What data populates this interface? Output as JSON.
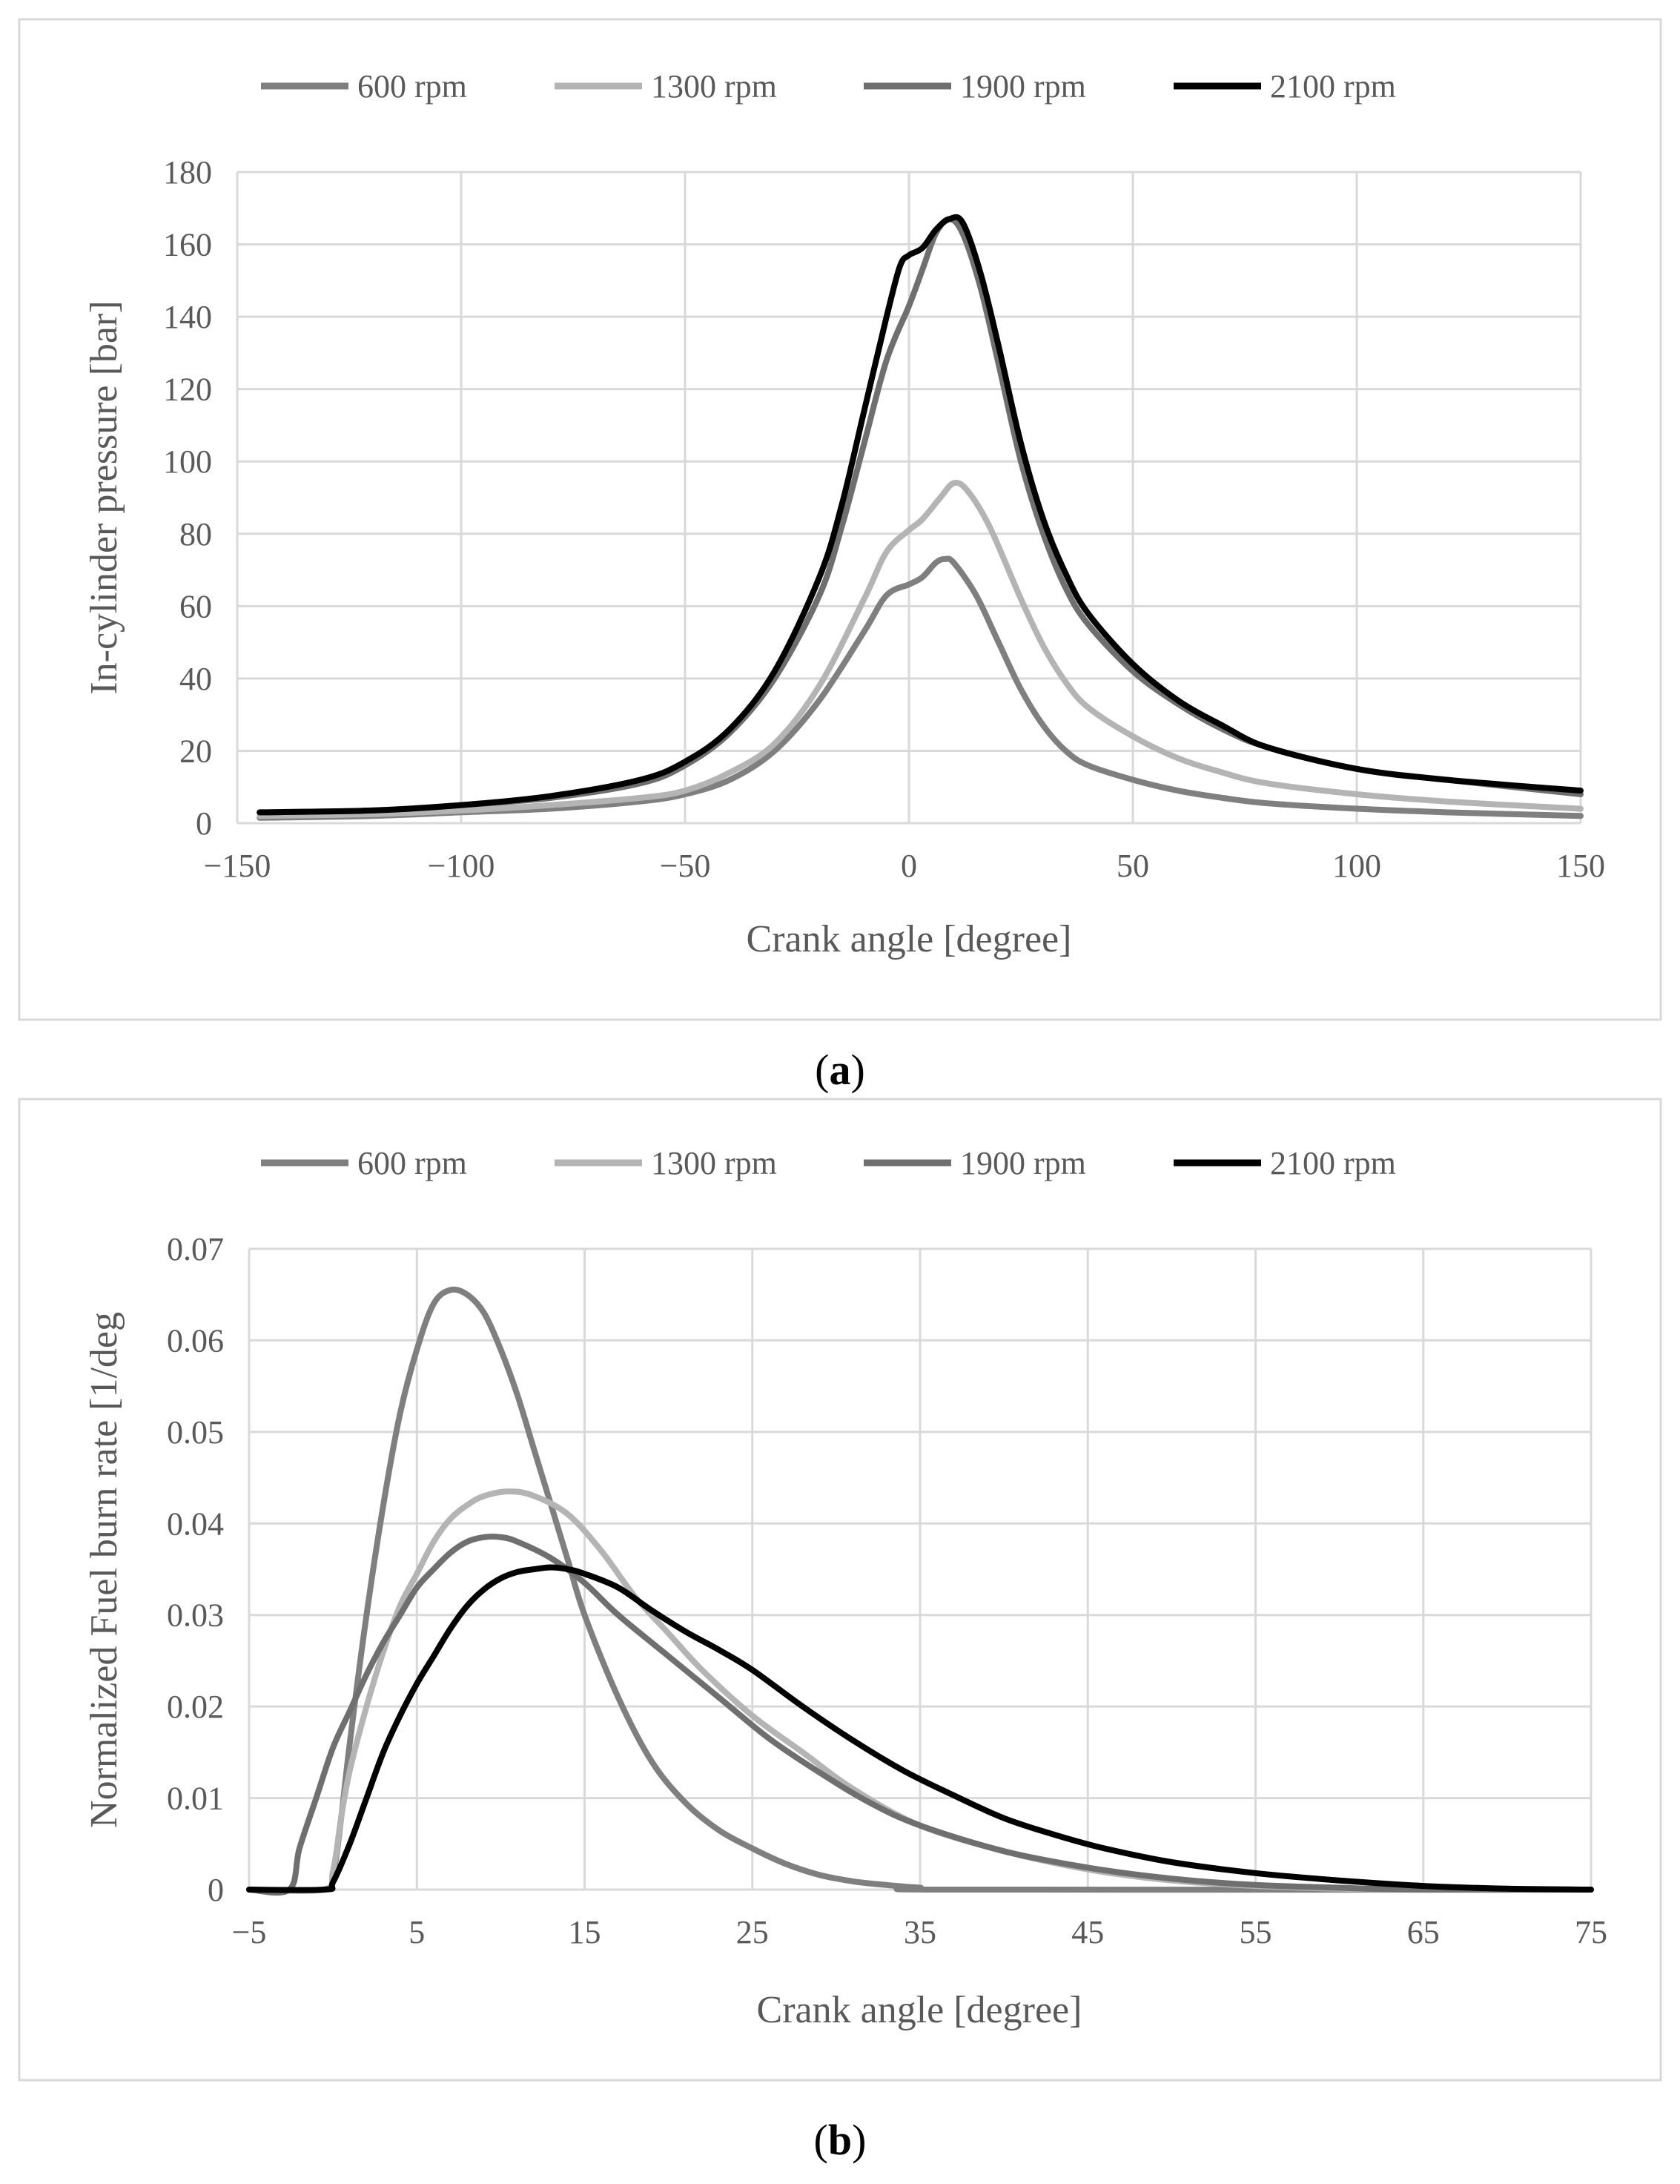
{
  "colors": {
    "s600": "#7f7f7f",
    "s1300": "#b4b4b4",
    "s1900": "#6f6f6f",
    "s2100": "#000000"
  },
  "captions": {
    "a": "a",
    "b": "b"
  },
  "chart_data": [
    {
      "type": "line",
      "title": "",
      "xlabel": "Crank angle [degree]",
      "ylabel": "In-cylinder pressure [bar]",
      "xlim": [
        -150,
        150
      ],
      "ylim": [
        0,
        180
      ],
      "xticks": [
        -150,
        -100,
        -50,
        0,
        50,
        100,
        150
      ],
      "xtick_labels": [
        "−150",
        "−100",
        "−50",
        "0",
        "50",
        "100",
        "150"
      ],
      "yticks": [
        0,
        20,
        40,
        60,
        80,
        100,
        120,
        140,
        160,
        180
      ],
      "ytick_labels": [
        "0",
        "20",
        "40",
        "60",
        "80",
        "100",
        "120",
        "140",
        "160",
        "180"
      ],
      "legend": "top",
      "series": [
        {
          "name": "600 rpm",
          "color_key": "s600",
          "points": [
            [
              -145,
              1.5
            ],
            [
              -120,
              2
            ],
            [
              -100,
              3
            ],
            [
              -80,
              4
            ],
            [
              -60,
              6
            ],
            [
              -50,
              8
            ],
            [
              -40,
              12
            ],
            [
              -30,
              20
            ],
            [
              -20,
              34
            ],
            [
              -10,
              53
            ],
            [
              -5,
              63
            ],
            [
              0,
              66
            ],
            [
              3,
              68
            ],
            [
              6,
              72
            ],
            [
              8,
              73
            ],
            [
              10,
              72
            ],
            [
              15,
              63
            ],
            [
              20,
              50
            ],
            [
              25,
              37
            ],
            [
              30,
              27
            ],
            [
              35,
              20
            ],
            [
              40,
              16
            ],
            [
              50,
              12
            ],
            [
              60,
              9
            ],
            [
              70,
              7
            ],
            [
              80,
              5.5
            ],
            [
              100,
              4
            ],
            [
              120,
              3
            ],
            [
              150,
              2
            ]
          ]
        },
        {
          "name": "1300 rpm",
          "color_key": "s1300",
          "points": [
            [
              -145,
              2
            ],
            [
              -120,
              2.5
            ],
            [
              -100,
              3.5
            ],
            [
              -80,
              5
            ],
            [
              -60,
              7
            ],
            [
              -50,
              9
            ],
            [
              -40,
              14
            ],
            [
              -30,
              22
            ],
            [
              -20,
              38
            ],
            [
              -10,
              62
            ],
            [
              -5,
              75
            ],
            [
              0,
              81
            ],
            [
              3,
              84
            ],
            [
              7,
              90
            ],
            [
              10,
              94
            ],
            [
              13,
              92
            ],
            [
              18,
              82
            ],
            [
              25,
              62
            ],
            [
              30,
              49
            ],
            [
              35,
              39
            ],
            [
              40,
              32
            ],
            [
              50,
              24
            ],
            [
              60,
              18
            ],
            [
              70,
              14
            ],
            [
              80,
              11
            ],
            [
              100,
              8
            ],
            [
              120,
              6
            ],
            [
              150,
              4
            ]
          ]
        },
        {
          "name": "1900 rpm",
          "color_key": "s1900",
          "points": [
            [
              -145,
              3
            ],
            [
              -120,
              3.5
            ],
            [
              -100,
              5
            ],
            [
              -80,
              7
            ],
            [
              -60,
              11
            ],
            [
              -50,
              16
            ],
            [
              -40,
              25
            ],
            [
              -30,
              40
            ],
            [
              -20,
              63
            ],
            [
              -15,
              82
            ],
            [
              -10,
              105
            ],
            [
              -5,
              128
            ],
            [
              0,
              143
            ],
            [
              3,
              153
            ],
            [
              6,
              163
            ],
            [
              9,
              167
            ],
            [
              12,
              163
            ],
            [
              16,
              148
            ],
            [
              20,
              127
            ],
            [
              25,
              100
            ],
            [
              30,
              80
            ],
            [
              35,
              65
            ],
            [
              40,
              55
            ],
            [
              50,
              42
            ],
            [
              60,
              33
            ],
            [
              70,
              26
            ],
            [
              80,
              21
            ],
            [
              100,
              15
            ],
            [
              120,
              12
            ],
            [
              150,
              8
            ]
          ]
        },
        {
          "name": "2100 rpm",
          "color_key": "s2100",
          "points": [
            [
              -145,
              3
            ],
            [
              -120,
              3.5
            ],
            [
              -100,
              5
            ],
            [
              -80,
              7.5
            ],
            [
              -60,
              12
            ],
            [
              -50,
              17
            ],
            [
              -40,
              26
            ],
            [
              -30,
              42
            ],
            [
              -20,
              68
            ],
            [
              -15,
              88
            ],
            [
              -10,
              114
            ],
            [
              -5,
              140
            ],
            [
              -2,
              154
            ],
            [
              0,
              157
            ],
            [
              3,
              159
            ],
            [
              6,
              164
            ],
            [
              9,
              167
            ],
            [
              12,
              166
            ],
            [
              16,
              152
            ],
            [
              20,
              132
            ],
            [
              25,
              105
            ],
            [
              30,
              84
            ],
            [
              35,
              69
            ],
            [
              40,
              58
            ],
            [
              50,
              44
            ],
            [
              60,
              34
            ],
            [
              70,
              27
            ],
            [
              80,
              21
            ],
            [
              100,
              15
            ],
            [
              120,
              12
            ],
            [
              150,
              9
            ]
          ]
        }
      ]
    },
    {
      "type": "line",
      "title": "",
      "xlabel": "Crank angle [degree]",
      "ylabel": "Normalized Fuel burn rate [1/deg",
      "xlim": [
        -5,
        75
      ],
      "ylim": [
        0,
        0.07
      ],
      "xticks": [
        -5,
        5,
        15,
        25,
        35,
        45,
        55,
        65,
        75
      ],
      "xtick_labels": [
        "−5",
        "5",
        "15",
        "25",
        "35",
        "45",
        "55",
        "65",
        "75"
      ],
      "yticks": [
        0,
        0.01,
        0.02,
        0.03,
        0.04,
        0.05,
        0.06,
        0.07
      ],
      "ytick_labels": [
        "0",
        "0.01",
        "0.02",
        "0.03",
        "0.04",
        "0.05",
        "0.06",
        "0.07"
      ],
      "legend": "top",
      "series": [
        {
          "name": "600 rpm",
          "color_key": "s600",
          "points": [
            [
              -5,
              0
            ],
            [
              -0.6,
              0
            ],
            [
              0,
              0.0015
            ],
            [
              0.5,
              0.008
            ],
            [
              1,
              0.016
            ],
            [
              2,
              0.03
            ],
            [
              3,
              0.042
            ],
            [
              4,
              0.052
            ],
            [
              5,
              0.059
            ],
            [
              6,
              0.064
            ],
            [
              7,
              0.0655
            ],
            [
              8,
              0.065
            ],
            [
              9,
              0.063
            ],
            [
              10,
              0.059
            ],
            [
              11,
              0.054
            ],
            [
              12,
              0.048
            ],
            [
              13,
              0.042
            ],
            [
              14,
              0.036
            ],
            [
              15,
              0.03
            ],
            [
              17,
              0.021
            ],
            [
              19,
              0.014
            ],
            [
              21,
              0.0095
            ],
            [
              23,
              0.0065
            ],
            [
              25,
              0.0045
            ],
            [
              27,
              0.0028
            ],
            [
              29,
              0.0016
            ],
            [
              31,
              0.0009
            ],
            [
              33,
              0.0005
            ],
            [
              35,
              0.0002
            ],
            [
              37,
              0
            ],
            [
              75,
              0
            ]
          ]
        },
        {
          "name": "1300 rpm",
          "color_key": "s1300",
          "points": [
            [
              -5,
              0
            ],
            [
              -0.6,
              0
            ],
            [
              0,
              0.002
            ],
            [
              0.5,
              0.008
            ],
            [
              1,
              0.013
            ],
            [
              2,
              0.02
            ],
            [
              3,
              0.026
            ],
            [
              4,
              0.031
            ],
            [
              5,
              0.0345
            ],
            [
              6,
              0.038
            ],
            [
              7,
              0.0405
            ],
            [
              8,
              0.042
            ],
            [
              9,
              0.043
            ],
            [
              10.5,
              0.0435
            ],
            [
              12,
              0.043
            ],
            [
              14,
              0.041
            ],
            [
              16,
              0.037
            ],
            [
              18,
              0.032
            ],
            [
              20,
              0.028
            ],
            [
              22,
              0.024
            ],
            [
              25,
              0.019
            ],
            [
              28,
              0.015
            ],
            [
              31,
              0.011
            ],
            [
              35,
              0.007
            ],
            [
              40,
              0.0042
            ],
            [
              45,
              0.0022
            ],
            [
              50,
              0.001
            ],
            [
              55,
              0.0004
            ],
            [
              60,
              0.0001
            ],
            [
              65,
              0
            ],
            [
              75,
              0
            ]
          ]
        },
        {
          "name": "1900 rpm",
          "color_key": "s1900",
          "points": [
            [
              -5,
              0
            ],
            [
              -2.6,
              0
            ],
            [
              -2,
              0.0045
            ],
            [
              -1,
              0.01
            ],
            [
              0,
              0.0155
            ],
            [
              1,
              0.0195
            ],
            [
              2,
              0.0235
            ],
            [
              3,
              0.027
            ],
            [
              4,
              0.03
            ],
            [
              5,
              0.033
            ],
            [
              6,
              0.035
            ],
            [
              7,
              0.0368
            ],
            [
              8,
              0.038
            ],
            [
              9,
              0.0385
            ],
            [
              10,
              0.0385
            ],
            [
              11,
              0.038
            ],
            [
              13,
              0.0362
            ],
            [
              15,
              0.0335
            ],
            [
              17,
              0.03
            ],
            [
              20,
              0.0255
            ],
            [
              23,
              0.021
            ],
            [
              26,
              0.0165
            ],
            [
              29,
              0.0128
            ],
            [
              32,
              0.0095
            ],
            [
              35,
              0.007
            ],
            [
              40,
              0.0042
            ],
            [
              45,
              0.0024
            ],
            [
              50,
              0.0012
            ],
            [
              55,
              0.0005
            ],
            [
              60,
              0.0002
            ],
            [
              65,
              0
            ],
            [
              75,
              0
            ]
          ]
        },
        {
          "name": "2100 rpm",
          "color_key": "s2100",
          "points": [
            [
              -5,
              0
            ],
            [
              -0.5,
              0
            ],
            [
              0,
              0.0008
            ],
            [
              1,
              0.005
            ],
            [
              2,
              0.01
            ],
            [
              3,
              0.015
            ],
            [
              4,
              0.019
            ],
            [
              5,
              0.0225
            ],
            [
              6,
              0.0255
            ],
            [
              7,
              0.0285
            ],
            [
              8,
              0.031
            ],
            [
              9,
              0.0328
            ],
            [
              10,
              0.034
            ],
            [
              11,
              0.0347
            ],
            [
              12,
              0.035
            ],
            [
              13,
              0.0352
            ],
            [
              14,
              0.035
            ],
            [
              15,
              0.0345
            ],
            [
              17,
              0.033
            ],
            [
              19,
              0.0305
            ],
            [
              21,
              0.0282
            ],
            [
              23,
              0.0262
            ],
            [
              25,
              0.024
            ],
            [
              28,
              0.02
            ],
            [
              31,
              0.0163
            ],
            [
              34,
              0.013
            ],
            [
              37,
              0.0103
            ],
            [
              40,
              0.0078
            ],
            [
              43,
              0.006
            ],
            [
              46,
              0.0045
            ],
            [
              50,
              0.003
            ],
            [
              55,
              0.0018
            ],
            [
              60,
              0.001
            ],
            [
              65,
              0.0004
            ],
            [
              70,
              0.0001
            ],
            [
              75,
              0
            ]
          ]
        }
      ]
    }
  ]
}
